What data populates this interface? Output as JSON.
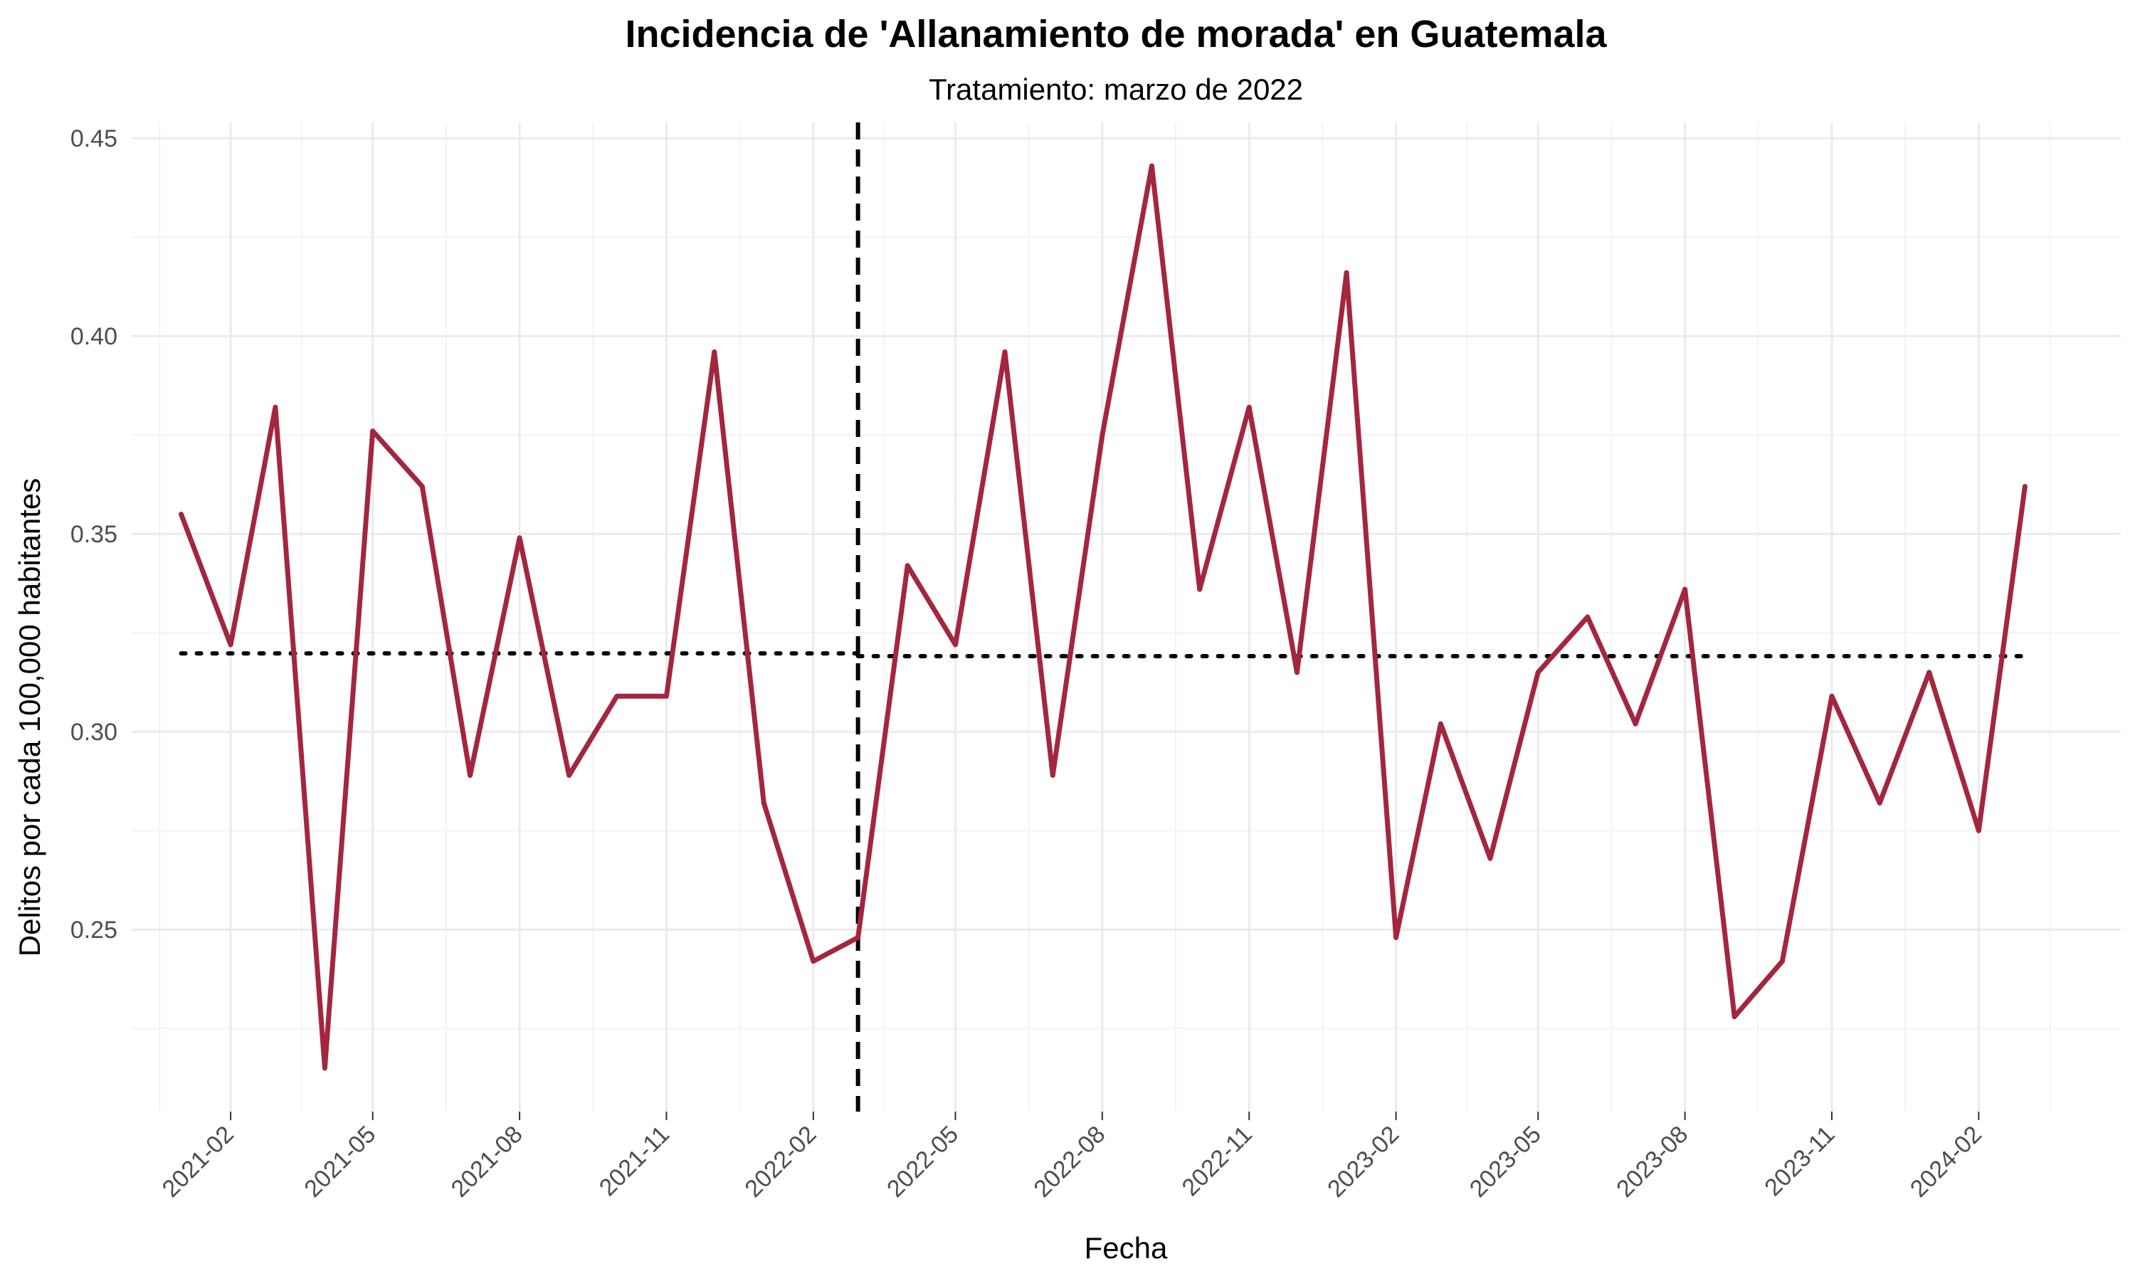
{
  "chart_data": {
    "type": "line",
    "title": "Incidencia de 'Allanamiento de morada' en Guatemala",
    "subtitle": "Tratamiento: marzo de 2022",
    "xlabel": "Fecha",
    "ylabel": "Delitos por cada 100,000 habitantes",
    "xlim": [
      "2020-12-01",
      "2024-04-30"
    ],
    "ylim": [
      0.204,
      0.454
    ],
    "x_ticks": [
      "2021-02",
      "2021-05",
      "2021-08",
      "2021-11",
      "2022-02",
      "2022-05",
      "2022-08",
      "2022-11",
      "2023-02",
      "2023-05",
      "2023-08",
      "2023-11",
      "2024-02"
    ],
    "y_ticks": [
      "0.25",
      "0.30",
      "0.35",
      "0.40",
      "0.45"
    ],
    "grid": true,
    "line_color": "#A3263F",
    "series": [
      {
        "x": [
          "2021-01-01",
          "2021-02-01",
          "2021-03-01",
          "2021-04-01",
          "2021-05-01",
          "2021-06-01",
          "2021-07-01",
          "2021-08-01",
          "2021-09-01",
          "2021-10-01",
          "2021-11-01",
          "2021-12-01",
          "2022-01-01",
          "2022-02-01",
          "2022-03-01",
          "2022-04-01",
          "2022-05-01",
          "2022-06-01",
          "2022-07-01",
          "2022-08-01",
          "2022-09-01",
          "2022-10-01",
          "2022-11-01",
          "2022-12-01",
          "2023-01-01",
          "2023-02-01",
          "2023-03-01",
          "2023-04-01",
          "2023-05-01",
          "2023-06-01",
          "2023-07-01",
          "2023-08-01",
          "2023-09-01",
          "2023-10-01",
          "2023-11-01",
          "2023-12-01",
          "2024-01-01",
          "2024-02-01",
          "2024-03-01"
        ],
        "values": [
          0.355,
          0.322,
          0.382,
          0.215,
          0.376,
          0.362,
          0.289,
          0.349,
          0.289,
          0.309,
          0.309,
          0.396,
          0.282,
          0.242,
          0.248,
          0.342,
          0.322,
          0.396,
          0.289,
          0.375,
          0.443,
          0.336,
          0.382,
          0.315,
          0.416,
          0.248,
          0.302,
          0.268,
          0.315,
          0.329,
          0.302,
          0.336,
          0.228,
          0.242,
          0.309,
          0.282,
          0.315,
          0.275,
          0.362
        ]
      }
    ],
    "annotations": [
      {
        "type": "vline",
        "x": "2022-03-01",
        "style": "dashed",
        "color": "#000000"
      },
      {
        "type": "hsegment",
        "x": [
          "2021-01-01",
          "2022-03-01"
        ],
        "y": 0.3198,
        "style": "dotted",
        "color": "#000000"
      },
      {
        "type": "hsegment",
        "x": [
          "2022-03-01",
          "2024-03-01"
        ],
        "y": 0.3191,
        "style": "dotted",
        "color": "#000000"
      }
    ]
  }
}
